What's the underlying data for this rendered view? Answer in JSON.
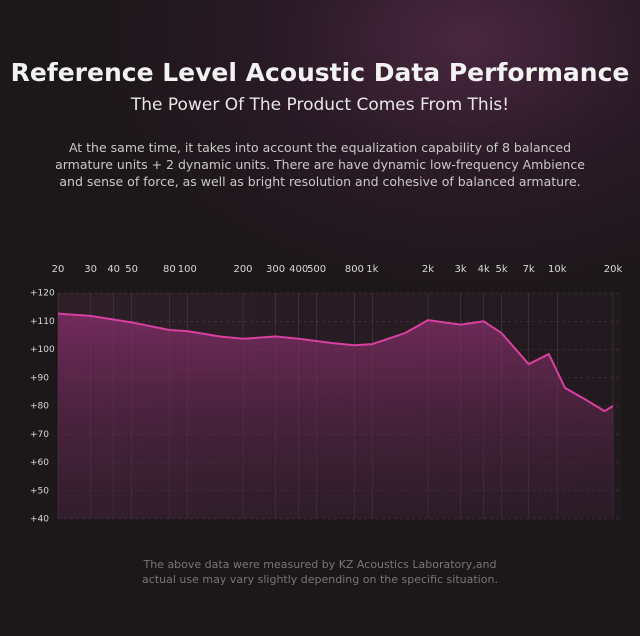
{
  "chart_data": {
    "type": "line",
    "title": "Reference Level Acoustic Data Performance",
    "subtitle": "The Power Of The Product Comes From This!",
    "description": "At the same time, it takes into account the equalization capability of 8 balanced armature units + 2 dynamic units. There are have dynamic low-frequency Ambience and sense of force, as well as bright resolution and cohesive of balanced armature.",
    "footnote": "The above data were measured by KZ Acoustics Laboratory,and actual use may vary slightly depending on the specific situation.",
    "x": [
      20,
      30,
      50,
      80,
      100,
      150,
      200,
      300,
      400,
      600,
      800,
      1000,
      1500,
      2000,
      3000,
      4000,
      5000,
      7000,
      9000,
      11000,
      14000,
      18000,
      20000
    ],
    "series": [
      {
        "color": "#d8409f",
        "values": [
          112.7,
          111.9,
          109.6,
          106.9,
          106.5,
          104.6,
          103.8,
          104.6,
          103.8,
          102.3,
          101.5,
          101.9,
          105.8,
          110.4,
          108.8,
          110,
          105.8,
          94.8,
          98.4,
          86.4,
          82.5,
          78.2,
          80
        ]
      }
    ],
    "xscale": "log",
    "xlim": [
      20,
      20000
    ],
    "xticks": [
      20,
      30,
      40,
      50,
      80,
      100,
      200,
      300,
      400,
      500,
      800,
      {
        "value": 1000,
        "label": "1k"
      },
      {
        "value": 2000,
        "label": "2k"
      },
      {
        "value": 3000,
        "label": "3k"
      },
      {
        "value": 4000,
        "label": "4k"
      },
      {
        "value": 5000,
        "label": "5k"
      },
      {
        "value": 7000,
        "label": "7k"
      },
      {
        "value": 10000,
        "label": "10k"
      },
      {
        "value": 20000,
        "label": "20k"
      }
    ],
    "ylim": [
      40,
      120
    ],
    "yticks": [
      {
        "value": 120,
        "label": "+120"
      },
      {
        "value": 110,
        "label": "+110"
      },
      {
        "value": 100,
        "label": "+100"
      },
      {
        "value": 90,
        "label": "+90"
      },
      {
        "value": 80,
        "label": "+80"
      },
      {
        "value": 70,
        "label": "+70"
      },
      {
        "value": 60,
        "label": "+60"
      },
      {
        "value": 50,
        "label": "+50"
      },
      {
        "value": 40,
        "label": "+40"
      }
    ],
    "grid": true
  }
}
